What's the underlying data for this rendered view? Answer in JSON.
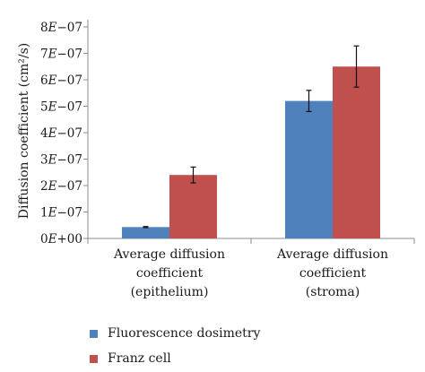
{
  "chart_data": {
    "type": "bar",
    "categories": [
      [
        "Average diffusion",
        "coefficient",
        "(epithelium)"
      ],
      [
        "Average diffusion",
        "coefficient",
        "(stroma)"
      ]
    ],
    "series": [
      {
        "name": "Fluorescence dosimetry",
        "color": "#4f81bd",
        "values": [
          4.3e-08,
          5.2e-07
        ],
        "errors": [
          2e-09,
          4e-08
        ]
      },
      {
        "name": "Franz cell",
        "color": "#c0504d",
        "values": [
          2.4e-07,
          6.5e-07
        ],
        "errors": [
          3e-08,
          7.8e-08
        ]
      }
    ],
    "ylim": [
      0,
      8e-07
    ],
    "yticks": [
      {
        "value": 0,
        "mant": "0",
        "exp": "+00"
      },
      {
        "value": 1e-07,
        "mant": "1",
        "exp": "−07"
      },
      {
        "value": 2e-07,
        "mant": "2",
        "exp": "−07"
      },
      {
        "value": 3e-07,
        "mant": "3",
        "exp": "−07"
      },
      {
        "value": 4e-07,
        "mant": "4",
        "exp": "−07"
      },
      {
        "value": 5e-07,
        "mant": "5",
        "exp": "−07"
      },
      {
        "value": 6e-07,
        "mant": "6",
        "exp": "−07"
      },
      {
        "value": 7e-07,
        "mant": "7",
        "exp": "−07"
      },
      {
        "value": 8e-07,
        "mant": "8",
        "exp": "−07"
      }
    ],
    "ylabel": "Diffusion coefficient (cm²/s)",
    "grid": false,
    "legend_position": "bottom-left"
  }
}
